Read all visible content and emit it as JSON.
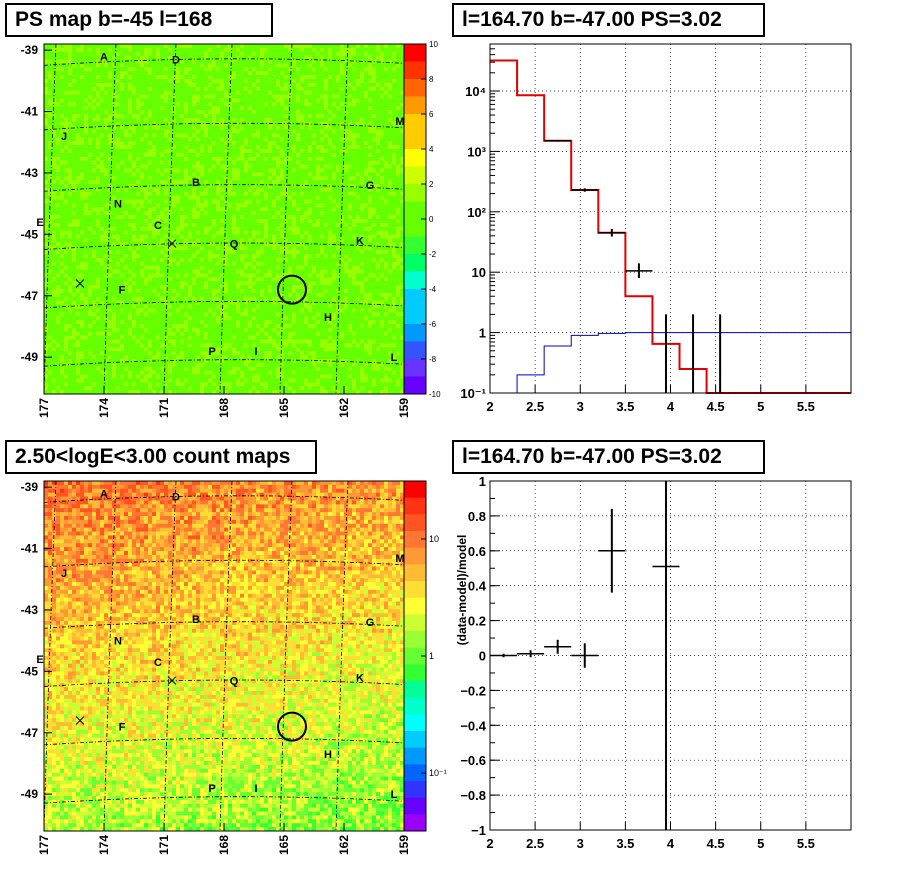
{
  "chart_data": [
    {
      "id": "ps_map",
      "type": "heatmap",
      "title": "PS map b=-45 l=168",
      "x_axis": {
        "label": "",
        "ticks": [
          "177",
          "174",
          "171",
          "168",
          "165",
          "162",
          "159"
        ],
        "direction": "decreasing"
      },
      "y_axis": {
        "label": "",
        "ticks": [
          "-39",
          "-41",
          "-43",
          "-45",
          "-47",
          "-49"
        ]
      },
      "colorbar": {
        "ticks": [
          "10",
          "8",
          "6",
          "4",
          "2",
          "0",
          "-2",
          "-4",
          "-6",
          "-8",
          "-10"
        ],
        "range": [
          -10,
          10
        ],
        "scale": "linear"
      },
      "background_level": 0.3,
      "source_markers": [
        {
          "label": "A",
          "l": 174.0,
          "b": -39.2
        },
        {
          "label": "D",
          "l": 170.4,
          "b": -39.3
        },
        {
          "label": "J",
          "l": 176.0,
          "b": -41.8
        },
        {
          "label": "M",
          "l": 159.2,
          "b": -41.3
        },
        {
          "label": "B",
          "l": 169.4,
          "b": -43.3
        },
        {
          "label": "G",
          "l": 160.7,
          "b": -43.4
        },
        {
          "label": "N",
          "l": 173.3,
          "b": -44.0
        },
        {
          "label": "E",
          "l": 177.2,
          "b": -44.6
        },
        {
          "label": "C",
          "l": 171.3,
          "b": -44.7
        },
        {
          "label": "Q",
          "l": 167.5,
          "b": -45.3
        },
        {
          "label": "K",
          "l": 161.2,
          "b": -45.2
        },
        {
          "label": "F",
          "l": 173.1,
          "b": -46.8
        },
        {
          "label": "H",
          "l": 162.8,
          "b": -47.7
        },
        {
          "label": "P",
          "l": 168.6,
          "b": -48.8
        },
        {
          "label": "I",
          "l": 166.4,
          "b": -48.8
        },
        {
          "label": "L",
          "l": 159.5,
          "b": -49.0
        }
      ],
      "cross_markers": [
        {
          "l": 170.6,
          "b": -45.3
        },
        {
          "l": 175.2,
          "b": -46.6
        }
      ],
      "circle": {
        "l": 164.6,
        "b": -46.8
      }
    },
    {
      "id": "spectrum",
      "type": "line",
      "title": "l=164.70 b=-47.00 PS=3.02",
      "xlim": [
        2.0,
        6.0
      ],
      "ylim": [
        0.1,
        60000
      ],
      "y_scale": "log",
      "x_ticks": [
        "2",
        "2.5",
        "3",
        "3.5",
        "4",
        "4.5",
        "5",
        "5.5"
      ],
      "y_ticks": [
        "10⁻¹",
        "1",
        "10",
        "10²",
        "10³",
        "10⁴"
      ],
      "bin_edges": [
        2.0,
        2.3,
        2.6,
        2.9,
        3.2,
        3.5,
        3.8,
        4.1,
        4.4,
        4.7,
        5.0,
        5.3,
        5.6,
        5.9,
        6.0
      ],
      "series": [
        {
          "color": "#e00000",
          "values": [
            32000,
            8500,
            1500,
            230,
            45,
            4,
            0.65,
            0.25,
            0.1,
            0.1,
            0.1,
            0.1,
            0.1,
            0.1
          ]
        },
        {
          "color": "#0000c0",
          "values": [
            0.1,
            0.2,
            0.6,
            0.9,
            0.97,
            1.0,
            1.0,
            1.0,
            1.0,
            1.0,
            1.0,
            1.0,
            1.0,
            1.0
          ]
        },
        {
          "color": "#000000",
          "points": [
            {
              "x": 2.75,
              "y": 1500,
              "xerr": 0.15,
              "ylo": 1450,
              "yhi": 1550
            },
            {
              "x": 3.05,
              "y": 230,
              "xerr": 0.15,
              "ylo": 215,
              "yhi": 245
            },
            {
              "x": 3.35,
              "y": 45,
              "xerr": 0.15,
              "ylo": 39,
              "yhi": 52
            },
            {
              "x": 3.65,
              "y": 10.5,
              "xerr": 0.15,
              "ylo": 8,
              "yhi": 14
            },
            {
              "x": 3.95,
              "y": 0.3,
              "xerr": 0.0,
              "ylo": 0.1,
              "yhi": 2.0
            },
            {
              "x": 4.25,
              "y": 0.6,
              "xerr": 0.0,
              "ylo": 0.1,
              "yhi": 2.0
            },
            {
              "x": 4.55,
              "y": 0.6,
              "xerr": 0.0,
              "ylo": 0.1,
              "yhi": 2.0
            }
          ]
        }
      ]
    },
    {
      "id": "count_map",
      "type": "heatmap",
      "title": "2.50<logE<3.00 count maps",
      "x_axis": {
        "label": "",
        "ticks": [
          "177",
          "174",
          "171",
          "168",
          "165",
          "162",
          "159"
        ],
        "direction": "decreasing"
      },
      "y_axis": {
        "label": "",
        "ticks": [
          "-39",
          "-41",
          "-43",
          "-45",
          "-47",
          "-49"
        ]
      },
      "colorbar": {
        "ticks": [
          "10",
          "1",
          "10⁻¹"
        ],
        "scale": "log"
      },
      "source_markers": [
        {
          "label": "A",
          "l": 174.0,
          "b": -39.2
        },
        {
          "label": "D",
          "l": 170.4,
          "b": -39.3
        },
        {
          "label": "J",
          "l": 176.0,
          "b": -41.8
        },
        {
          "label": "M",
          "l": 159.2,
          "b": -41.3
        },
        {
          "label": "B",
          "l": 169.4,
          "b": -43.3
        },
        {
          "label": "G",
          "l": 160.7,
          "b": -43.4
        },
        {
          "label": "N",
          "l": 173.3,
          "b": -44.0
        },
        {
          "label": "E",
          "l": 177.2,
          "b": -44.6
        },
        {
          "label": "C",
          "l": 171.3,
          "b": -44.7
        },
        {
          "label": "Q",
          "l": 167.5,
          "b": -45.3
        },
        {
          "label": "K",
          "l": 161.2,
          "b": -45.2
        },
        {
          "label": "F",
          "l": 173.1,
          "b": -46.8
        },
        {
          "label": "H",
          "l": 162.8,
          "b": -47.7
        },
        {
          "label": "P",
          "l": 168.6,
          "b": -48.8
        },
        {
          "label": "I",
          "l": 166.4,
          "b": -48.8
        },
        {
          "label": "L",
          "l": 159.5,
          "b": -49.0
        }
      ],
      "cross_markers": [
        {
          "l": 170.6,
          "b": -45.3
        },
        {
          "l": 175.2,
          "b": -46.6
        }
      ],
      "circle": {
        "l": 164.6,
        "b": -46.8
      }
    },
    {
      "id": "residuals",
      "type": "scatter",
      "title": "l=164.70 b=-47.00 PS=3.02",
      "ylabel": "(data-model)/model",
      "xlim": [
        2.0,
        6.0
      ],
      "ylim": [
        -1.0,
        1.0
      ],
      "x_ticks": [
        "2",
        "2.5",
        "3",
        "3.5",
        "4",
        "4.5",
        "5",
        "5.5"
      ],
      "y_ticks": [
        "−1",
        "−0.8",
        "−0.6",
        "−0.4",
        "−0.2",
        "0",
        "0.2",
        "0.4",
        "0.6",
        "0.8",
        "1"
      ],
      "points": [
        {
          "x": 2.15,
          "y": 0.0,
          "xerr": 0.15,
          "yerr": 0.01
        },
        {
          "x": 2.45,
          "y": 0.01,
          "xerr": 0.15,
          "yerr": 0.02
        },
        {
          "x": 2.75,
          "y": 0.05,
          "xerr": 0.15,
          "yerr": 0.04
        },
        {
          "x": 3.05,
          "y": 0.0,
          "xerr": 0.15,
          "yerr": 0.07
        },
        {
          "x": 3.35,
          "y": 0.6,
          "xerr": 0.15,
          "yerr": 0.24
        },
        {
          "x": 3.95,
          "y": 0.51,
          "xerr": 0.15,
          "yerr": 2.0
        }
      ]
    }
  ]
}
